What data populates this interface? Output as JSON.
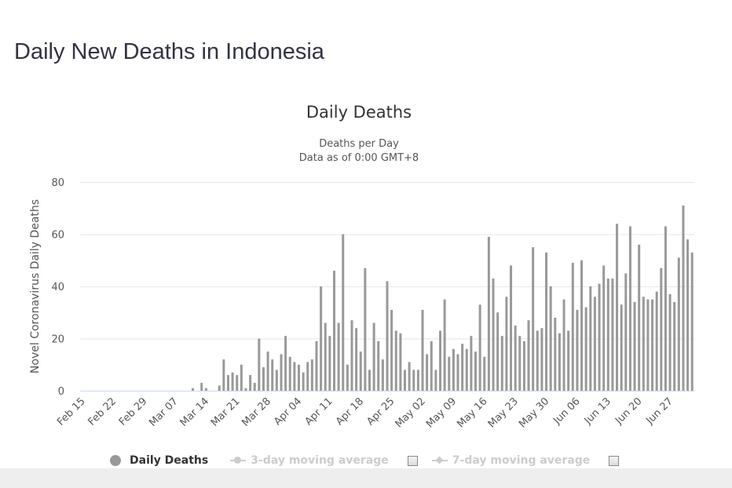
{
  "page": {
    "title": "Daily New Deaths in Indonesia"
  },
  "chart": {
    "title": "Daily Deaths",
    "subtitle_line1": "Deaths per Day",
    "subtitle_line2": "Data as of 0:00 GMT+8",
    "ylabel": "Novel Coronavirus Daily Deaths",
    "yticks": [
      "0",
      "20",
      "40",
      "60",
      "80"
    ],
    "xticks": [
      "Feb 15",
      "Feb 22",
      "Feb 29",
      "Mar 07",
      "Mar 14",
      "Mar 21",
      "Mar 28",
      "Apr 04",
      "Apr 11",
      "Apr 18",
      "Apr 25",
      "May 02",
      "May 09",
      "May 16",
      "May 23",
      "May 30",
      "Jun 06",
      "Jun 13",
      "Jun 20",
      "Jun 27"
    ],
    "bar_color": "#999999",
    "grid_color": "#e6e6e6",
    "axis_color": "#ccd6eb"
  },
  "legend": {
    "items": [
      {
        "label": "Daily Deaths",
        "active": true
      },
      {
        "label": "3-day moving average",
        "active": false
      },
      {
        "label": "7-day moving average",
        "active": false
      }
    ]
  },
  "chart_data": {
    "type": "bar",
    "title": "Daily Deaths",
    "subtitle": "Deaths per Day / Data as of 0:00 GMT+8",
    "xlabel": "",
    "ylabel": "Novel Coronavirus Daily Deaths",
    "ylim": [
      0,
      80
    ],
    "grid": true,
    "legend_position": "bottom",
    "start_date": "Feb 15",
    "end_date": "Jul 02",
    "x_tick_labels": [
      "Feb 15",
      "Feb 22",
      "Feb 29",
      "Mar 07",
      "Mar 14",
      "Mar 21",
      "Mar 28",
      "Apr 04",
      "Apr 11",
      "Apr 18",
      "Apr 25",
      "May 02",
      "May 09",
      "May 16",
      "May 23",
      "May 30",
      "Jun 06",
      "Jun 13",
      "Jun 20",
      "Jun 27"
    ],
    "series": [
      {
        "name": "Daily Deaths",
        "values": [
          0,
          0,
          0,
          0,
          0,
          0,
          0,
          0,
          0,
          0,
          0,
          0,
          0,
          0,
          0,
          0,
          0,
          0,
          0,
          0,
          0,
          0,
          0,
          0,
          0,
          1,
          0,
          3,
          1,
          0,
          0,
          2,
          12,
          6,
          7,
          6,
          10,
          1,
          6,
          3,
          20,
          9,
          15,
          12,
          8,
          14,
          21,
          13,
          11,
          10,
          7,
          11,
          12,
          19,
          40,
          26,
          21,
          46,
          26,
          60,
          10,
          27,
          24,
          15,
          47,
          8,
          26,
          19,
          12,
          42,
          31,
          23,
          22,
          8,
          11,
          8,
          8,
          31,
          14,
          19,
          8,
          23,
          35,
          13,
          16,
          14,
          18,
          16,
          21,
          15,
          33,
          13,
          59,
          43,
          30,
          21,
          36,
          48,
          25,
          21,
          19,
          27,
          55,
          23,
          24,
          53,
          40,
          28,
          22,
          35,
          23,
          49,
          31,
          50,
          32,
          40,
          36,
          41,
          48,
          43,
          43,
          64,
          33,
          45,
          63,
          34,
          56,
          36,
          35,
          35,
          38,
          47,
          63,
          37,
          34,
          51,
          71,
          58,
          53
        ]
      },
      {
        "name": "3-day moving average",
        "values": [],
        "visible": false
      },
      {
        "name": "7-day moving average",
        "values": [],
        "visible": false
      }
    ]
  }
}
